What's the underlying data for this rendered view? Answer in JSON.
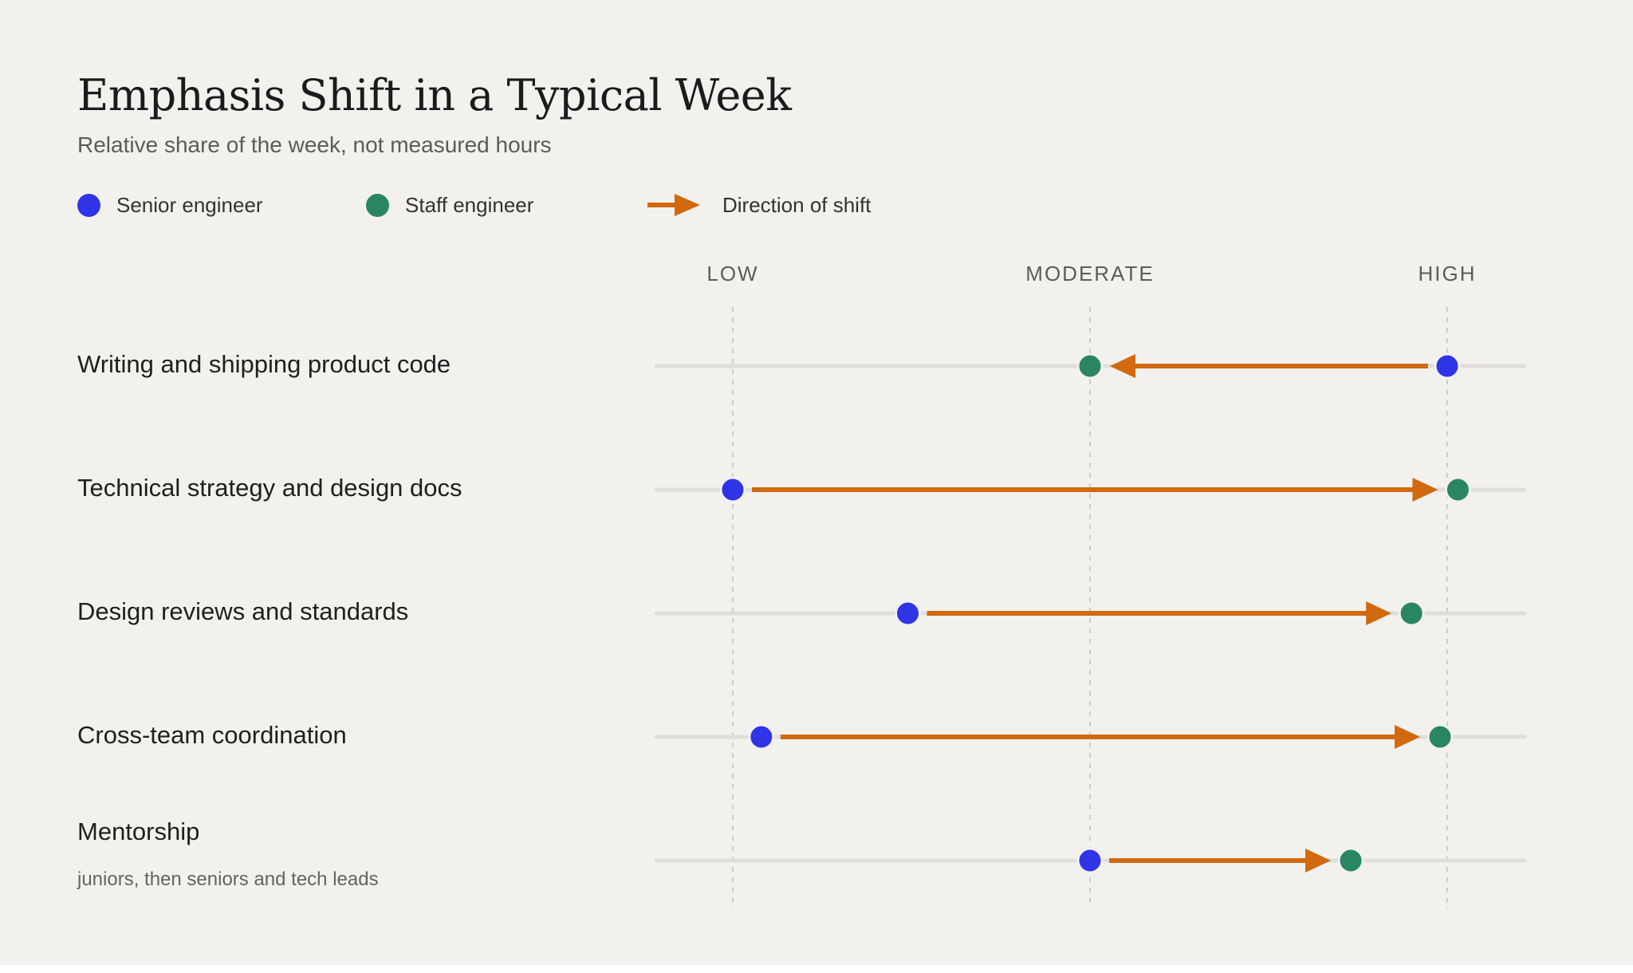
{
  "title": "Emphasis Shift in a Typical Week",
  "subtitle": "Relative share of the week, not measured hours",
  "legend": {
    "senior_label": "Senior engineer",
    "staff_label": "Staff engineer",
    "shift_label": "Direction of shift"
  },
  "colors": {
    "senior": "#2f34e6",
    "staff": "#2a8562",
    "shift_arrow": "#d0690f",
    "track": "#e0ded8",
    "gridline": "#cfcdc8"
  },
  "chart_data": {
    "type": "dumbbell",
    "title": "Emphasis Shift in a Typical Week",
    "subtitle": "Relative share of the week, not measured hours",
    "x_scale": {
      "min": 0,
      "max": 2
    },
    "x_ticks": [
      {
        "value": 0,
        "label": "LOW"
      },
      {
        "value": 1,
        "label": "MODERATE"
      },
      {
        "value": 2,
        "label": "HIGH"
      }
    ],
    "categories": [
      "Writing and shipping product code",
      "Technical strategy and design docs",
      "Design reviews and standards",
      "Cross-team coordination",
      "Mentorship"
    ],
    "category_notes": [
      "",
      "",
      "",
      "",
      "juniors, then seniors and tech leads"
    ],
    "series": [
      {
        "name": "Senior engineer",
        "values": [
          2.0,
          0.0,
          0.49,
          0.08,
          1.0
        ]
      },
      {
        "name": "Staff engineer",
        "values": [
          1.0,
          2.03,
          1.9,
          1.98,
          1.73
        ]
      }
    ],
    "arrow_from": "Senior engineer",
    "arrow_to": "Staff engineer",
    "grid": "vertical dashed",
    "legend_position": "top-left"
  }
}
